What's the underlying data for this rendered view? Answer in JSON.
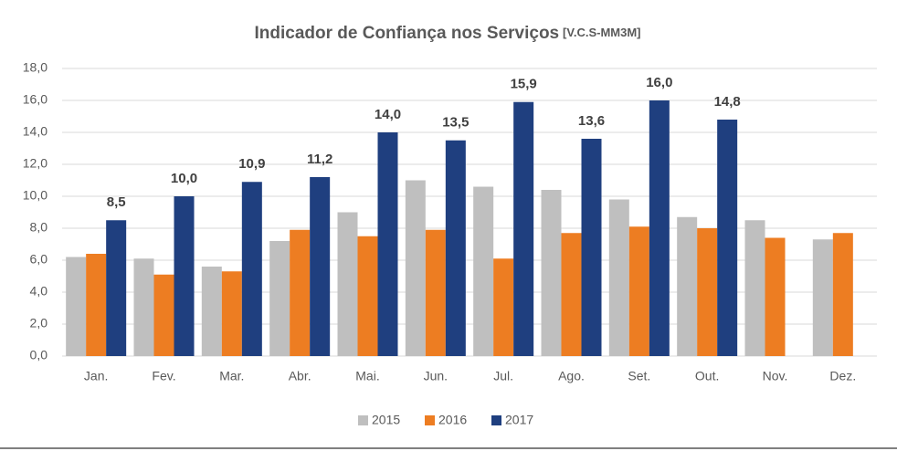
{
  "chart_data": {
    "type": "bar",
    "title": "Indicador de Confiança nos Serviços",
    "subtitle": "[V.C.S-MM3M]",
    "categories": [
      "Jan.",
      "Fev.",
      "Mar.",
      "Abr.",
      "Mai.",
      "Jun.",
      "Jul.",
      "Ago.",
      "Set.",
      "Out.",
      "Nov.",
      "Dez."
    ],
    "series": [
      {
        "name": "2015",
        "color": "#bfbfbf",
        "values": [
          6.2,
          6.1,
          5.6,
          7.2,
          9.0,
          11.0,
          10.6,
          10.4,
          9.8,
          8.7,
          8.5,
          7.3
        ]
      },
      {
        "name": "2016",
        "color": "#ed7d22",
        "values": [
          6.4,
          5.1,
          5.3,
          7.9,
          7.5,
          7.9,
          6.1,
          7.7,
          8.1,
          8.0,
          7.4,
          7.7
        ]
      },
      {
        "name": "2017",
        "color": "#1f3f7f",
        "values": [
          8.5,
          10.0,
          10.9,
          11.2,
          14.0,
          13.5,
          15.9,
          13.6,
          16.0,
          14.8,
          null,
          null
        ],
        "value_labels": [
          "8,5",
          "10,0",
          "10,9",
          "11,2",
          "14,0",
          "13,5",
          "15,9",
          "13,6",
          "16,0",
          "14,8",
          null,
          null
        ]
      }
    ],
    "ylim": [
      0,
      18
    ],
    "yticks": [
      {
        "value": 0,
        "label": "0,0"
      },
      {
        "value": 2,
        "label": "2,0"
      },
      {
        "value": 4,
        "label": "4,0"
      },
      {
        "value": 6,
        "label": "6,0"
      },
      {
        "value": 8,
        "label": "8,0"
      },
      {
        "value": 10,
        "label": "10,0"
      },
      {
        "value": 12,
        "label": "12,0"
      },
      {
        "value": 14,
        "label": "14,0"
      },
      {
        "value": 16,
        "label": "16,0"
      },
      {
        "value": 18,
        "label": "18,0"
      }
    ],
    "grid": true,
    "legend": "bottom"
  }
}
